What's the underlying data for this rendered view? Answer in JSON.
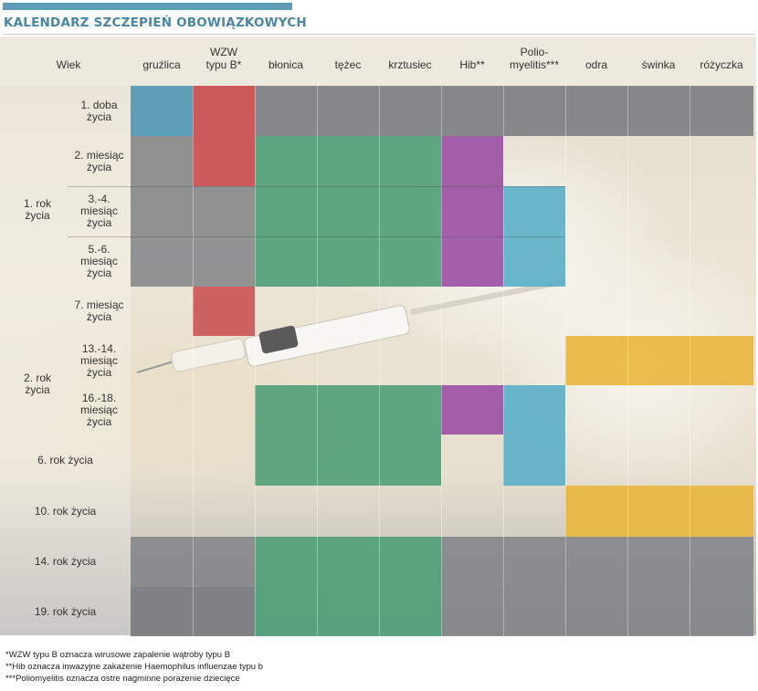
{
  "title": "KALENDARZ SZCZEPIEŃ OBOWIĄZKOWYCH",
  "header": {
    "wiek": "Wiek",
    "columns": [
      {
        "id": "gruzlica",
        "line1": "gruźlica",
        "line2": ""
      },
      {
        "id": "wzw",
        "line1": "WZW",
        "line2": "typu B*"
      },
      {
        "id": "blonica",
        "line1": "błonica",
        "line2": ""
      },
      {
        "id": "tezec",
        "line1": "tężec",
        "line2": ""
      },
      {
        "id": "krztusiec",
        "line1": "krztusiec",
        "line2": ""
      },
      {
        "id": "hib",
        "line1": "Hib**",
        "line2": ""
      },
      {
        "id": "polio",
        "line1": "Polio-",
        "line2": "myelitis***"
      },
      {
        "id": "odra",
        "line1": "odra",
        "line2": ""
      },
      {
        "id": "swinka",
        "line1": "świnka",
        "line2": ""
      },
      {
        "id": "rozyczka",
        "line1": "różyczka",
        "line2": ""
      }
    ]
  },
  "groups": [
    {
      "label1": "1. rok",
      "label2": "życia"
    },
    {
      "label1": "2. rok",
      "label2": "życia"
    }
  ],
  "rows": [
    {
      "id": "r1",
      "label": [
        "1. doba",
        "życia"
      ]
    },
    {
      "id": "r2",
      "label": [
        "2. miesiąc",
        "życia"
      ]
    },
    {
      "id": "r3",
      "label": [
        "3.-4.",
        "miesiąc",
        "życia"
      ]
    },
    {
      "id": "r4",
      "label": [
        "5.-6.",
        "miesiąc",
        "życia"
      ]
    },
    {
      "id": "r5",
      "label": [
        "7. miesiąc",
        "życia"
      ]
    },
    {
      "id": "r6",
      "label": [
        "13.-14.",
        "miesiąc",
        "życia"
      ]
    },
    {
      "id": "r7",
      "label": [
        "16.-18.",
        "miesiąc",
        "życia"
      ]
    },
    {
      "id": "r8",
      "label": [
        "6. rok życia"
      ]
    },
    {
      "id": "r9",
      "label": [
        "10. rok życia"
      ]
    },
    {
      "id": "r10",
      "label": [
        "14. rok życia"
      ]
    },
    {
      "id": "r11",
      "label": [
        "19. rok życia"
      ]
    }
  ],
  "colors": {
    "gruzlica": "#4f97b5",
    "wzw": "#c94a4e",
    "dtp": "#4f9e78",
    "hib": "#9a4fa2",
    "polio": "#5aaec6",
    "mmr": "#e9b63c",
    "gray": "#7d8084"
  },
  "footnotes": [
    "*WZW typu B oznacza wirusowe zapalenie wątroby typu B",
    "**Hib oznacza inwazyjne zakażenie Haemophilus influenzae typu b",
    "***Poliomyelitis oznacza ostre nagminne porażenie dziecięce"
  ]
}
